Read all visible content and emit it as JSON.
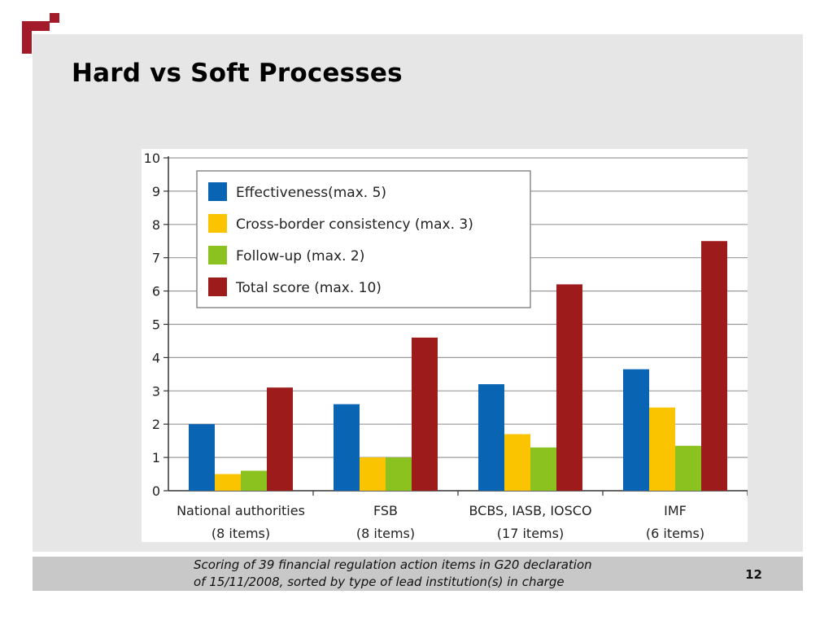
{
  "slide": {
    "title": "Hard vs Soft Processes",
    "caption_line1": "Scoring of 39 financial regulation action items in G20 declaration",
    "caption_line2": "of 15/11/2008, sorted by type of lead institution(s) in charge",
    "page_number": "12",
    "logo_color": "#a31b2a"
  },
  "chart_data": {
    "type": "bar",
    "title": "",
    "xlabel": "",
    "ylabel": "",
    "ylim": [
      0,
      10
    ],
    "yticks": [
      0,
      1,
      2,
      3,
      4,
      5,
      6,
      7,
      8,
      9,
      10
    ],
    "grid": true,
    "legend_position": "top-left",
    "categories": [
      {
        "line1": "National authorities",
        "line2": "(8 items)"
      },
      {
        "line1": "FSB",
        "line2": "(8 items)"
      },
      {
        "line1": "BCBS, IASB, IOSCO",
        "line2": "(17 items)"
      },
      {
        "line1": "IMF",
        "line2": "(6 items)"
      }
    ],
    "series": [
      {
        "name": "Effectiveness(max. 5)",
        "color": "#0a64b4",
        "values": [
          2.0,
          2.6,
          3.2,
          3.65
        ]
      },
      {
        "name": "Cross-border consistency (max. 3)",
        "color": "#fbc400",
        "values": [
          0.5,
          1.0,
          1.7,
          2.5
        ]
      },
      {
        "name": "Follow-up (max. 2)",
        "color": "#8cc21f",
        "values": [
          0.6,
          1.0,
          1.3,
          1.35
        ]
      },
      {
        "name": "Total score (max. 10)",
        "color": "#9e1b1b",
        "values": [
          3.1,
          4.6,
          6.2,
          7.5
        ]
      }
    ]
  }
}
